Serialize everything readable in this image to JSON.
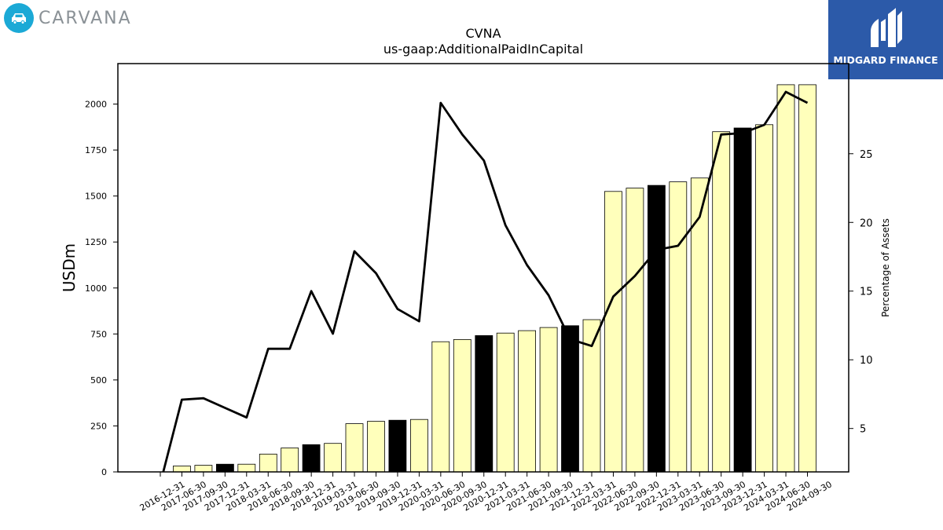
{
  "logos": {
    "left_brand": "CARVANA",
    "right_brand": "MIDGARD FINANCE",
    "left_brand_color": "#1ba9d6",
    "right_brand_color": "#2c5aa9",
    "left_icon": "car-icon",
    "right_icon": "midgard-mark-icon"
  },
  "chart_data": {
    "type": "bar",
    "title": "CVNA",
    "subtitle": "us-gaap:AdditionalPaidInCapital",
    "ylabel": "USDm",
    "y2label": "Percentage of Assets",
    "ylim": [
      0,
      2220
    ],
    "y2lim": [
      1.84,
      31.56
    ],
    "yticks": [
      0,
      250,
      500,
      750,
      1000,
      1250,
      1500,
      1750,
      2000
    ],
    "y2ticks": [
      5,
      10,
      15,
      20,
      25
    ],
    "grid": false,
    "categories": [
      "2016-12-31",
      "2017-06-30",
      "2017-09-30",
      "2017-12-31",
      "2018-03-31",
      "2018-06-30",
      "2018-09-30",
      "2018-12-31",
      "2019-03-31",
      "2019-06-30",
      "2019-09-30",
      "2019-12-31",
      "2020-03-31",
      "2020-06-30",
      "2020-09-30",
      "2020-12-31",
      "2021-03-31",
      "2021-06-30",
      "2021-09-30",
      "2021-12-31",
      "2022-03-31",
      "2022-06-30",
      "2022-09-30",
      "2022-12-31",
      "2023-03-31",
      "2023-06-30",
      "2023-09-30",
      "2023-12-31",
      "2024-03-31",
      "2024-06-30",
      "2024-09-30"
    ],
    "series": [
      {
        "kind": "bar",
        "values": [
          0,
          32,
          36,
          42,
          42,
          97,
          130,
          148,
          155,
          262,
          275,
          281,
          285,
          708,
          720,
          741,
          755,
          768,
          785,
          795,
          828,
          1525,
          1543,
          1558,
          1577,
          1598,
          1850,
          1870,
          1888,
          2105,
          2105
        ],
        "highlight": [
          false,
          false,
          false,
          true,
          false,
          false,
          false,
          true,
          false,
          false,
          false,
          true,
          false,
          false,
          false,
          true,
          false,
          false,
          false,
          true,
          false,
          false,
          false,
          true,
          false,
          false,
          false,
          true,
          false,
          false,
          false
        ],
        "color": "#ffffbb",
        "highlight_color": "#000000"
      },
      {
        "kind": "line",
        "axis": "y2",
        "values": [
          1.0,
          7.1,
          7.2,
          6.5,
          5.8,
          10.8,
          10.8,
          15.0,
          11.9,
          17.9,
          16.3,
          13.7,
          12.8,
          28.7,
          26.4,
          24.5,
          19.8,
          16.9,
          14.7,
          11.5,
          11.0,
          14.6,
          16.1,
          18.0,
          18.3,
          20.4,
          26.4,
          26.5,
          27.1,
          29.5,
          28.7
        ],
        "color": "#000000"
      }
    ]
  }
}
